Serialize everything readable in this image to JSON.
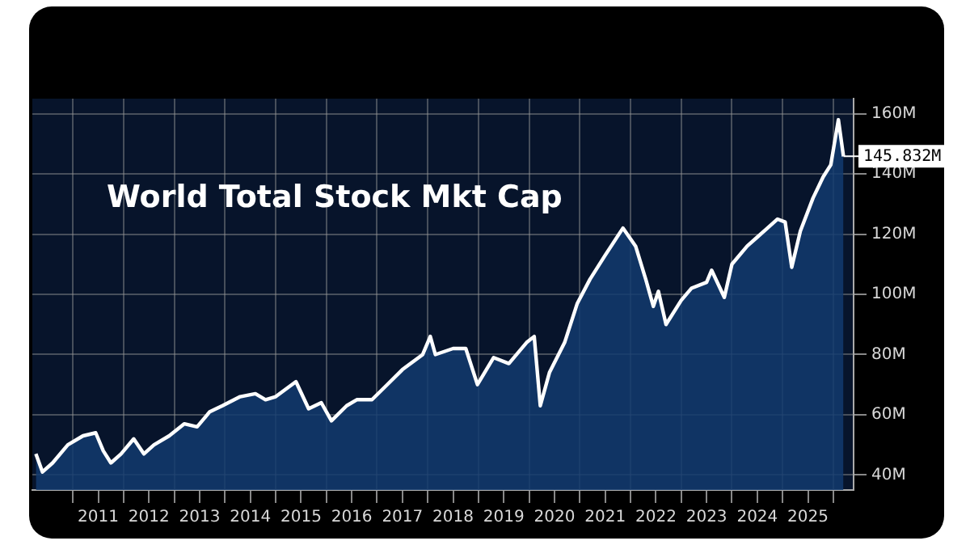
{
  "chart_data": {
    "type": "area",
    "title": "World Total Stock Mkt Cap",
    "x": [
      2010.27,
      2010.4,
      2010.6,
      2010.9,
      2011.2,
      2011.45,
      2011.6,
      2011.75,
      2011.95,
      2012.2,
      2012.4,
      2012.6,
      2012.9,
      2013.2,
      2013.45,
      2013.7,
      2013.95,
      2014.3,
      2014.6,
      2014.8,
      2015.0,
      2015.4,
      2015.65,
      2015.9,
      2016.1,
      2016.4,
      2016.6,
      2016.9,
      2017.2,
      2017.5,
      2017.9,
      2018.05,
      2018.15,
      2018.5,
      2018.75,
      2018.98,
      2019.3,
      2019.6,
      2019.95,
      2020.1,
      2020.22,
      2020.4,
      2020.7,
      2020.95,
      2021.2,
      2021.5,
      2021.85,
      2022.1,
      2022.3,
      2022.45,
      2022.55,
      2022.7,
      2023.0,
      2023.2,
      2023.5,
      2023.6,
      2023.85,
      2024.0,
      2024.3,
      2024.5,
      2024.7,
      2024.9,
      2025.05,
      2025.18,
      2025.35,
      2025.6,
      2025.8,
      2025.95,
      2026.1,
      2026.2
    ],
    "series": [
      {
        "color": "#ffffff",
        "values": [
          47,
          41,
          44,
          50,
          53,
          54,
          48,
          44,
          47,
          52,
          47,
          50,
          53,
          57,
          56,
          61,
          63,
          66,
          67,
          65,
          66,
          71,
          62,
          64,
          58,
          63,
          65,
          65,
          70,
          75,
          80,
          86,
          80,
          82,
          82,
          70,
          79,
          77,
          84,
          86,
          63,
          74,
          84,
          97,
          105,
          113,
          122,
          116,
          105,
          96,
          101,
          90,
          98,
          102,
          104,
          108,
          99,
          110,
          116,
          119,
          122,
          125,
          124,
          109,
          121,
          132,
          139,
          143,
          158,
          145.832
        ]
      }
    ],
    "xlim": [
      2010.2,
      2026.4
    ],
    "xticks": [
      {
        "value": 2011,
        "label": null
      },
      {
        "value": 2011.5,
        "label": "2011"
      },
      {
        "value": 2012,
        "label": null
      },
      {
        "value": 2012.5,
        "label": "2012"
      },
      {
        "value": 2013,
        "label": null
      },
      {
        "value": 2013.5,
        "label": "2013"
      },
      {
        "value": 2014,
        "label": null
      },
      {
        "value": 2014.5,
        "label": "2014"
      },
      {
        "value": 2015,
        "label": null
      },
      {
        "value": 2015.5,
        "label": "2015"
      },
      {
        "value": 2016,
        "label": null
      },
      {
        "value": 2016.5,
        "label": "2016"
      },
      {
        "value": 2017,
        "label": null
      },
      {
        "value": 2017.5,
        "label": "2017"
      },
      {
        "value": 2018,
        "label": null
      },
      {
        "value": 2018.5,
        "label": "2018"
      },
      {
        "value": 2019,
        "label": null
      },
      {
        "value": 2019.5,
        "label": "2019"
      },
      {
        "value": 2020,
        "label": null
      },
      {
        "value": 2020.5,
        "label": "2020"
      },
      {
        "value": 2021,
        "label": null
      },
      {
        "value": 2021.5,
        "label": "2021"
      },
      {
        "value": 2022,
        "label": null
      },
      {
        "value": 2022.5,
        "label": "2022"
      },
      {
        "value": 2023,
        "label": null
      },
      {
        "value": 2023.5,
        "label": "2023"
      },
      {
        "value": 2024,
        "label": null
      },
      {
        "value": 2024.5,
        "label": "2024"
      },
      {
        "value": 2025,
        "label": null
      },
      {
        "value": 2025.5,
        "label": "2025"
      },
      {
        "value": 2026,
        "label": null
      }
    ],
    "ylim": [
      35,
      165
    ],
    "yticks": [
      {
        "value": 40,
        "label": "40M"
      },
      {
        "value": 60,
        "label": "60M"
      },
      {
        "value": 80,
        "label": "80M"
      },
      {
        "value": 100,
        "label": "100M"
      },
      {
        "value": 120,
        "label": "120M"
      },
      {
        "value": 140,
        "label": "140M"
      },
      {
        "value": 160,
        "label": "160M"
      }
    ],
    "annotations": [
      {
        "text": "145.832M",
        "x": 2026.2,
        "y": 145.832
      }
    ],
    "grid": true,
    "legend": false,
    "marker": "none",
    "line_style": "solid"
  }
}
